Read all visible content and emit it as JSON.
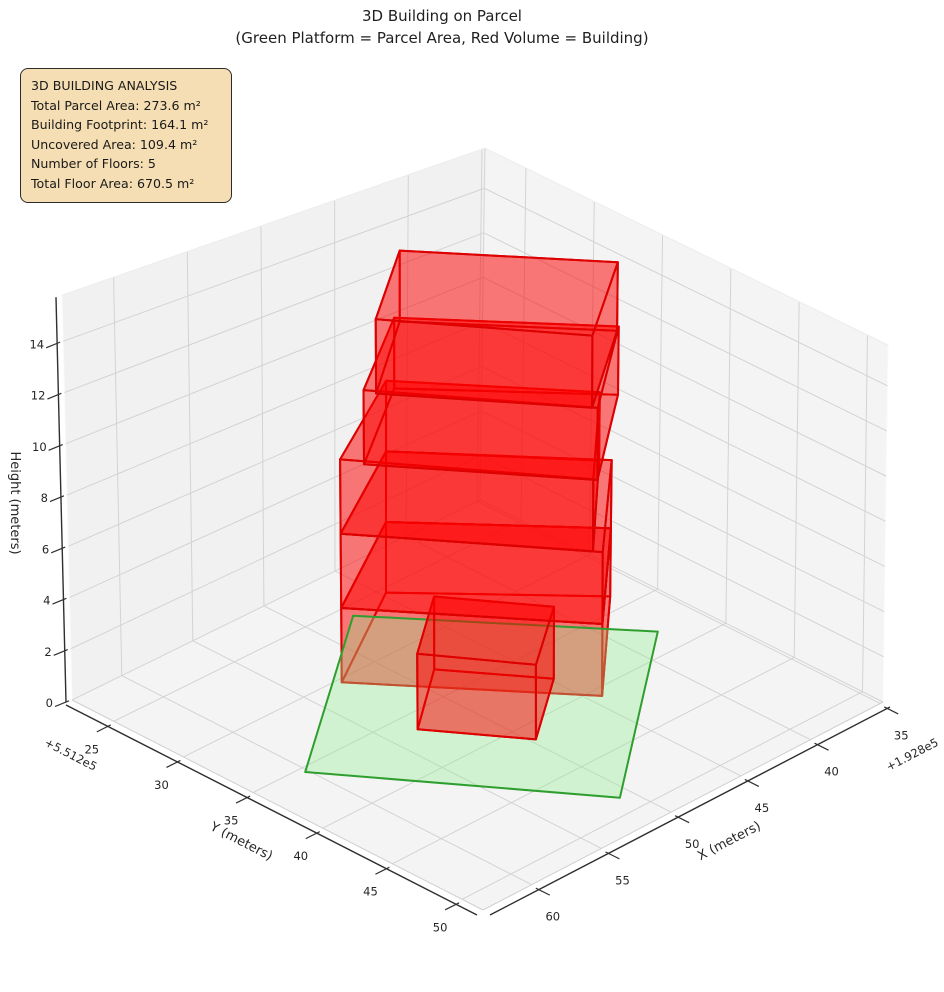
{
  "title": {
    "line1": "3D Building on Parcel",
    "line2": "(Green Platform = Parcel Area, Red Volume = Building)"
  },
  "stats_box": {
    "title": "3D BUILDING ANALYSIS",
    "rows": [
      "Total Parcel Area: 273.6 m²",
      "Building Footprint: 164.1 m²",
      "Uncovered Area: 109.4 m²",
      "Number of Floors: 5",
      "Total Floor Area: 670.5 m²"
    ],
    "bg_color": "#f5deb3",
    "border_color": "#2b2b2b"
  },
  "chart_data": {
    "type": "3d_building_extrusion",
    "title": "3D Building on Parcel",
    "subtitle": "(Green Platform = Parcel Area, Red Volume = Building)",
    "legend_note": "Green Platform = Parcel Area, Red Volume = Building",
    "axes": {
      "x": {
        "label": "X (meters)",
        "ticks": [
          35,
          40,
          45,
          50,
          55,
          60
        ],
        "offset_text": "+1.928e5",
        "offset_value": 192800,
        "range": [
          34.8,
          63.5
        ]
      },
      "y": {
        "label": "Y (meters)",
        "ticks": [
          25,
          30,
          35,
          40,
          45,
          50
        ],
        "offset_text": "+5.512e5",
        "offset_value": 551200,
        "range": [
          22,
          51.5
        ]
      },
      "z": {
        "label": "Height (meters)",
        "ticks": [
          0,
          2,
          4,
          6,
          8,
          10,
          12,
          14
        ],
        "range": [
          0,
          15.8
        ]
      }
    },
    "parcel": {
      "area_m2": 273.6,
      "edge_color": "#2e9e2e",
      "fill_color": "rgba(144,238,144,0.35)",
      "corners": [
        [
          192847.5,
          551225.9
        ],
        [
          192860.2,
          551235.4
        ],
        [
          192850.8,
          551248.6
        ],
        [
          192837.8,
          551238.1
        ]
      ]
    },
    "building": {
      "edge_color": "#dd0000",
      "fill_color": "rgba(255,0,0,0.3)",
      "footprint_area_m2": 164.1,
      "uncovered_area_m2": 109.4,
      "num_floors": 5,
      "floor_height_m": 3,
      "total_height_m": 15,
      "total_floor_area_m2": 670.5,
      "footprints": {
        "main": [
          [
            192844.7,
            551225.4
          ],
          [
            192837.0,
            551233.8
          ],
          [
            192844.3,
            551240.7
          ],
          [
            192852.6,
            551230.3
          ]
        ],
        "mid": [
          [
            192844.7,
            551225.4
          ],
          [
            192837.5,
            551233.4
          ],
          [
            192844.6,
            551240.3
          ],
          [
            192852.6,
            551230.3
          ]
        ],
        "upper": [
          [
            192845.0,
            551226.3
          ],
          [
            192837.0,
            551234.2
          ],
          [
            192844.5,
            551240.5
          ],
          [
            192852.1,
            551231.5
          ]
        ],
        "top": [
          [
            192845.1,
            551226.8
          ],
          [
            192837.4,
            551234.5
          ],
          [
            192844.7,
            551240.3
          ],
          [
            192851.9,
            551232.2
          ]
        ]
      },
      "floors": [
        {
          "level": 1,
          "z0": 0,
          "z1": 3,
          "footprint": "main"
        },
        {
          "level": 2,
          "z0": 3,
          "z1": 6,
          "footprint": "main"
        },
        {
          "level": 3,
          "z0": 6,
          "z1": 9,
          "footprint": "mid"
        },
        {
          "level": 4,
          "z0": 9,
          "z1": 12,
          "footprint": "upper"
        },
        {
          "level": 5,
          "z0": 12,
          "z1": 15,
          "footprint": "top"
        }
      ],
      "annex": {
        "z0": 0,
        "z1": 3,
        "corners": [
          [
            192848.4,
            551232.7
          ],
          [
            192844.8,
            551237.7
          ],
          [
            192849.7,
            551241.4
          ],
          [
            192853.2,
            551236.4
          ]
        ]
      }
    },
    "colors": {
      "pane": "#f2f2f2",
      "grid": "#d3d3d3",
      "axis_line": "#2f2f2f",
      "tick_text": "#262626"
    }
  }
}
